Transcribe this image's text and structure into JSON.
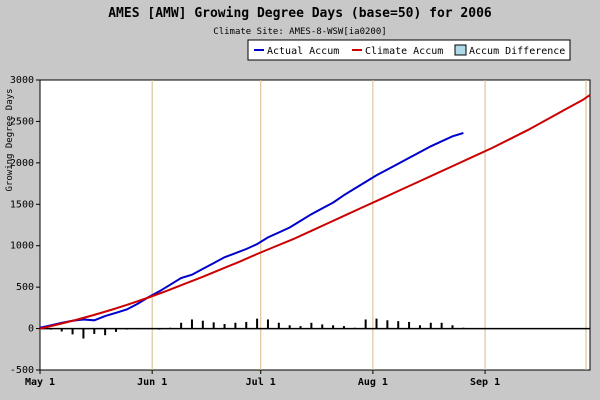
{
  "chart_data": {
    "type": "line",
    "title": "AMES [AMW] Growing Degree Days (base=50) for 2006",
    "subtitle": "Climate Site: AMES-8-WSW[ia0200]",
    "ylabel": "Growing Degree Days",
    "ylim": [
      -500,
      3000
    ],
    "yticks": [
      -500,
      0,
      500,
      1000,
      1500,
      2000,
      2500,
      3000
    ],
    "x_start": "May 1",
    "x_end_day": 152,
    "xticks": [
      {
        "day": 0,
        "label": "May 1"
      },
      {
        "day": 31,
        "label": "Jun 1"
      },
      {
        "day": 61,
        "label": "Jul 1"
      },
      {
        "day": 92,
        "label": "Aug 1"
      },
      {
        "day": 123,
        "label": "Sep 1"
      }
    ],
    "grid": true,
    "legend_position": "top-right",
    "series": [
      {
        "name": "Actual Accum",
        "color": "#0000cc",
        "style": "line",
        "x": [
          0,
          3,
          6,
          9,
          12,
          15,
          18,
          21,
          24,
          27,
          30,
          33,
          36,
          39,
          42,
          45,
          48,
          51,
          54,
          57,
          60,
          63,
          66,
          69,
          72,
          75,
          78,
          81,
          84,
          87,
          90,
          93,
          96,
          99,
          102,
          105,
          108,
          111,
          114,
          117
        ],
        "y": [
          10,
          40,
          70,
          95,
          110,
          100,
          150,
          190,
          230,
          300,
          380,
          450,
          530,
          610,
          650,
          720,
          790,
          860,
          910,
          960,
          1020,
          1100,
          1160,
          1220,
          1300,
          1380,
          1450,
          1520,
          1610,
          1690,
          1770,
          1850,
          1920,
          1990,
          2060,
          2130,
          2200,
          2260,
          2320,
          2360
        ]
      },
      {
        "name": "Climate Accum",
        "color": "#cc0000",
        "style": "line",
        "x": [
          0,
          5,
          10,
          15,
          20,
          25,
          30,
          35,
          40,
          45,
          50,
          55,
          60,
          65,
          70,
          75,
          80,
          85,
          90,
          95,
          100,
          105,
          110,
          115,
          120,
          125,
          130,
          135,
          140,
          145,
          150,
          152
        ],
        "y": [
          0,
          50,
          105,
          165,
          230,
          300,
          375,
          455,
          540,
          625,
          715,
          805,
          900,
          990,
          1080,
          1180,
          1280,
          1380,
          1480,
          1580,
          1680,
          1780,
          1880,
          1980,
          2080,
          2180,
          2290,
          2400,
          2520,
          2640,
          2760,
          2820
        ]
      },
      {
        "name": "Accum Difference",
        "color": "#add8e6",
        "style": "bar",
        "x": [
          0,
          3,
          6,
          9,
          12,
          15,
          18,
          21,
          24,
          27,
          30,
          33,
          36,
          39,
          42,
          45,
          48,
          51,
          54,
          57,
          60,
          63,
          66,
          69,
          72,
          75,
          78,
          81,
          84,
          87,
          90,
          93,
          96,
          99,
          102,
          105,
          108,
          111,
          114,
          117
        ],
        "y": [
          10,
          -10,
          -35,
          -70,
          -120,
          -65,
          -80,
          -40,
          -5,
          5,
          5,
          -5,
          10,
          70,
          110,
          95,
          75,
          55,
          70,
          80,
          120,
          110,
          70,
          40,
          30,
          70,
          50,
          40,
          30,
          10,
          110,
          120,
          100,
          90,
          80,
          40,
          70,
          70,
          40,
          10
        ]
      }
    ]
  }
}
